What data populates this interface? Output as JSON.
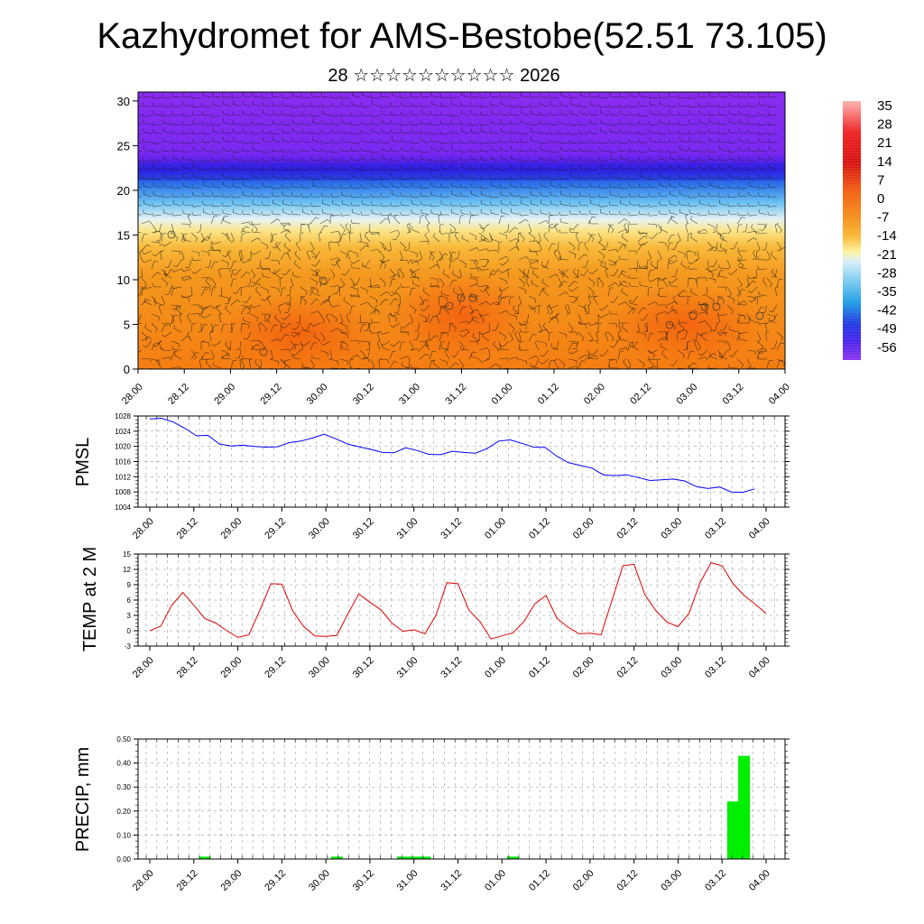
{
  "title": "Kazhydromet for AMS-Bestobe(52.51 73.105)",
  "subtitle": "28 ☆☆☆☆☆☆☆☆☆☆ 2026",
  "colors": {
    "pmsl_line": "#0000ff",
    "temp_line": "#e00000",
    "precip_bar": "#00ee00",
    "colorbar": [
      "#ff9aa0",
      "#ee3030",
      "#dd1010",
      "#ee6010",
      "#f07d10",
      "#f4a020",
      "#f8c840",
      "#fdf0a0",
      "#c8e8f8",
      "#7ccbf0",
      "#2aa0e8",
      "#2040e0",
      "#3020ee",
      "#6a20f0",
      "#8a30ee"
    ]
  },
  "chart_data": [
    {
      "type": "heatmap",
      "name": "cross-section",
      "description_panel": "temperature cross-section with wind barbs",
      "x_tick_labels": [
        "28.00",
        "28.12",
        "29.00",
        "29.12",
        "30.00",
        "30.12",
        "31.00",
        "31.12",
        "01.00",
        "01.12",
        "02.00",
        "02.12",
        "03.00",
        "03.12",
        "04.00"
      ],
      "y_ticks": [
        0,
        5,
        10,
        15,
        20,
        25,
        30
      ],
      "ylim": [
        0,
        31
      ],
      "colorbar_labels": [
        "35",
        "28",
        "21",
        "14",
        "7",
        "0",
        "-7",
        "-14",
        "-21",
        "-28",
        "-35",
        "-42",
        "-49",
        "-56"
      ],
      "colorbar_range": [
        -60,
        38
      ]
    },
    {
      "type": "line",
      "name": "pmsl",
      "ylabel": "PMSL",
      "x_tick_labels": [
        "28.00",
        "28.12",
        "29.00",
        "29.12",
        "30.00",
        "30.12",
        "31.00",
        "31.12",
        "01.00",
        "01.12",
        "02.00",
        "02.12",
        "03.00",
        "03.12",
        "04.00"
      ],
      "y_ticks": [
        "1004",
        "1008",
        "1012",
        "1016",
        "1020",
        "1024",
        "1028"
      ],
      "ylim": [
        1004,
        1028
      ],
      "values": [
        1027.2,
        1027.4,
        1026.4,
        1024.8,
        1022.8,
        1022.9,
        1020.6,
        1020.1,
        1020.3,
        1020.0,
        1019.8,
        1019.9,
        1021.0,
        1021.4,
        1022.2,
        1023.2,
        1022.0,
        1020.6,
        1019.9,
        1019.2,
        1018.4,
        1018.3,
        1019.6,
        1018.9,
        1017.9,
        1017.8,
        1018.7,
        1018.4,
        1018.2,
        1019.4,
        1021.4,
        1021.7,
        1020.8,
        1019.8,
        1019.7,
        1017.4,
        1015.7,
        1015.0,
        1014.3,
        1012.5,
        1012.3,
        1012.5,
        1011.8,
        1011.0,
        1011.2,
        1011.4,
        1010.9,
        1009.4,
        1008.9,
        1009.3,
        1008.0,
        1007.9,
        1008.8
      ]
    },
    {
      "type": "line",
      "name": "temp",
      "ylabel": "TEMP at 2 M",
      "x_tick_labels": [
        "28.00",
        "28.12",
        "29.00",
        "29.12",
        "30.00",
        "30.12",
        "31.00",
        "31.12",
        "01.00",
        "01.12",
        "02.00",
        "02.12",
        "03.00",
        "03.12",
        "04.00"
      ],
      "y_ticks": [
        "-3",
        "0",
        "3",
        "6",
        "9",
        "12",
        "15"
      ],
      "ylim": [
        -3,
        15
      ],
      "values": [
        0.0,
        0.9,
        5.0,
        7.5,
        5.0,
        2.4,
        1.5,
        0.0,
        -1.3,
        -0.8,
        4.0,
        9.2,
        9.1,
        3.8,
        0.8,
        -1.0,
        -1.1,
        -0.9,
        3.3,
        7.2,
        5.6,
        4.1,
        1.5,
        -0.1,
        0.2,
        -0.6,
        3.0,
        9.4,
        9.2,
        4.0,
        1.8,
        -1.6,
        -1.0,
        -0.4,
        1.8,
        5.3,
        6.9,
        2.4,
        0.7,
        -0.6,
        -0.5,
        -0.8,
        6.0,
        12.7,
        13.0,
        7.0,
        3.9,
        1.7,
        0.8,
        3.4,
        9.4,
        13.3,
        12.7,
        9.2,
        6.9,
        5.2,
        3.4
      ]
    },
    {
      "type": "bar",
      "name": "precip",
      "ylabel": "PRECIP, mm",
      "x_tick_labels": [
        "28.00",
        "28.12",
        "29.00",
        "29.12",
        "30.00",
        "30.12",
        "31.00",
        "31.12",
        "01.00",
        "01.12",
        "02.00",
        "02.12",
        "03.00",
        "03.12",
        "04.00"
      ],
      "y_ticks": [
        "0.00",
        "0.10",
        "0.20",
        "0.30",
        "0.40",
        "0.50"
      ],
      "ylim": [
        0,
        0.5
      ],
      "bars": [
        {
          "hour": 15,
          "value": 0.01
        },
        {
          "hour": 51,
          "value": 0.01
        },
        {
          "hour": 69,
          "value": 0.01
        },
        {
          "hour": 72,
          "value": 0.01
        },
        {
          "hour": 75,
          "value": 0.01
        },
        {
          "hour": 99,
          "value": 0.01
        },
        {
          "hour": 159,
          "value": 0.24
        },
        {
          "hour": 162,
          "value": 0.43
        }
      ]
    }
  ]
}
